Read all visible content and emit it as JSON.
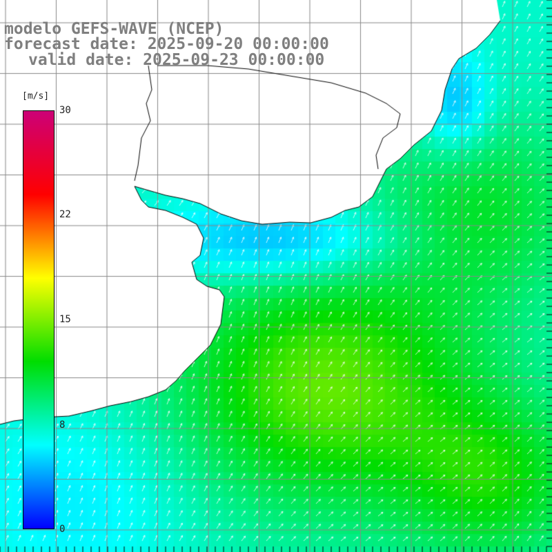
{
  "title": {
    "model": "modelo GEFS-WAVE (NCEP)",
    "forecast_date": "forecast date: 2025-09-20 00:00:00",
    "valid_date": "valid date: 2025-09-23 00:00:00"
  },
  "colorbar": {
    "unit": "[m/s]",
    "min": 0,
    "max": 30,
    "ticks": [
      "30",
      "22",
      "15",
      "8",
      "0"
    ],
    "tick_values": [
      30,
      22,
      15,
      8,
      0
    ],
    "colors": [
      "#0000ff",
      "#00ffff",
      "#00dd00",
      "#ffff00",
      "#ff0000",
      "#cc0077"
    ]
  },
  "map": {
    "land_color": "#ffffff",
    "grid_color": "#888888",
    "coast_color": "#000000",
    "arrow_color": "#ffffff",
    "grid_on": true
  }
}
